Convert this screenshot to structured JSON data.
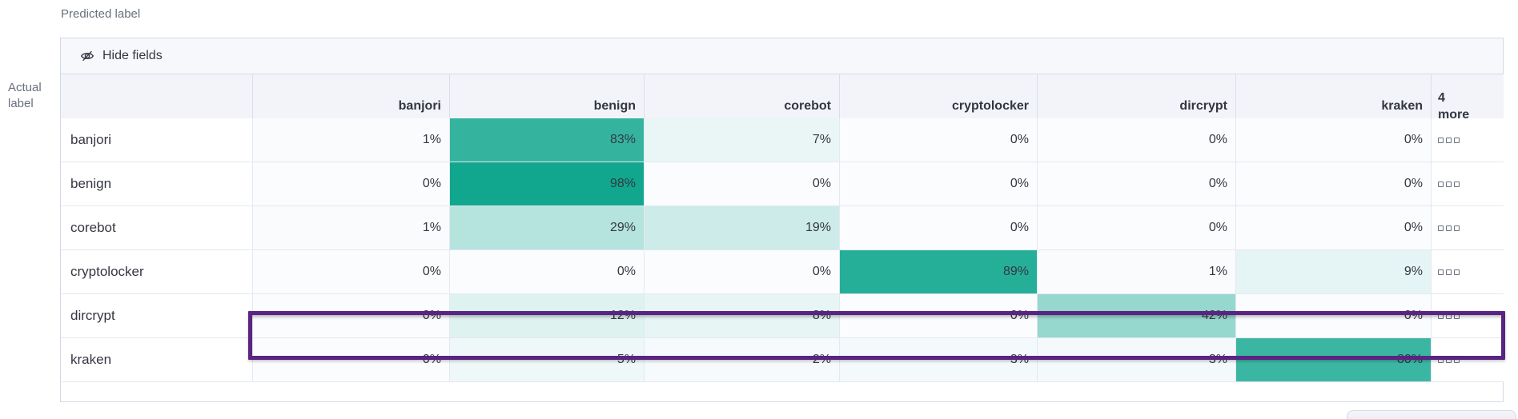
{
  "axis": {
    "predicted": "Predicted label",
    "actual_line1": "Actual",
    "actual_line2": "label"
  },
  "toolbar": {
    "hide_fields_label": "Hide fields",
    "hide_fields_icon": "eye-closed-icon"
  },
  "header": {
    "more_count": "4",
    "more_word": "more"
  },
  "icons": {
    "row_overflow": "boxes-horizontal-icon"
  },
  "colors": {
    "heat_base": "#0ba58c",
    "value_cell_bg": "#fbfcfe",
    "highlight_purple": "#5a2482",
    "border": "#d3dae6",
    "text_primary": "#343741",
    "text_secondary": "#69707d",
    "header_bg": "#f2f4f9",
    "toolbar_bg": "#f7f8fc"
  },
  "chart_data": {
    "type": "heatmap",
    "xlabel": "Predicted label",
    "ylabel": "Actual label",
    "x_categories": [
      "banjori",
      "benign",
      "corebot",
      "cryptolocker",
      "dircrypt",
      "kraken"
    ],
    "y_categories": [
      "banjori",
      "benign",
      "corebot",
      "cryptolocker",
      "dircrypt",
      "kraken"
    ],
    "values_percent": [
      [
        1,
        83,
        7,
        0,
        0,
        0
      ],
      [
        0,
        98,
        0,
        0,
        0,
        0
      ],
      [
        1,
        29,
        19,
        0,
        0,
        0
      ],
      [
        0,
        0,
        0,
        89,
        1,
        9
      ],
      [
        0,
        12,
        8,
        0,
        42,
        0
      ],
      [
        0,
        5,
        2,
        3,
        3,
        80
      ]
    ],
    "value_suffix": "%",
    "hidden_columns_more": 4,
    "highlighted_row": "dircrypt",
    "legend": "none",
    "cell_shading": "teal intensity proportional to percentage"
  }
}
